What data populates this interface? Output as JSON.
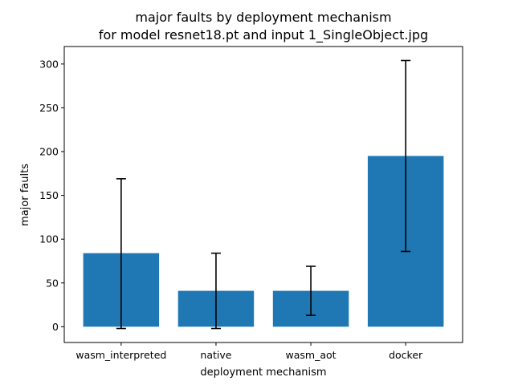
{
  "chart_data": {
    "type": "bar",
    "title": "major faults by deployment mechanism",
    "subtitle": "for model resnet18.pt and input 1_SingleObject.jpg",
    "xlabel": "deployment mechanism",
    "ylabel": "major faults",
    "categories": [
      "wasm_interpreted",
      "native",
      "wasm_aot",
      "docker"
    ],
    "values": [
      84,
      41,
      41,
      195
    ],
    "error_low": [
      -2,
      -2,
      13,
      86
    ],
    "error_high": [
      169,
      84,
      69,
      304
    ],
    "ylim": [
      -18,
      320
    ],
    "yticks": [
      0,
      50,
      100,
      150,
      200,
      250,
      300
    ],
    "bar_color": "#1f77b4",
    "grid": false
  }
}
